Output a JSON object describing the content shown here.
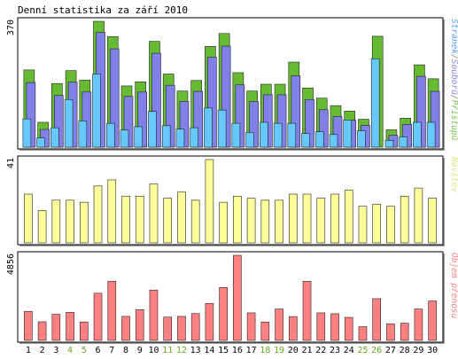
{
  "chart_data": {
    "type": "bar",
    "title": "Denní statistika za září 2010",
    "categories": [
      "1",
      "2",
      "3",
      "4",
      "5",
      "6",
      "7",
      "8",
      "9",
      "10",
      "11",
      "12",
      "13",
      "14",
      "15",
      "16",
      "17",
      "18",
      "19",
      "20",
      "21",
      "22",
      "23",
      "24",
      "25",
      "26",
      "27",
      "28",
      "29",
      "30"
    ],
    "weekend_days": [
      "4",
      "5",
      "11",
      "12",
      "18",
      "19",
      "25",
      "26"
    ],
    "grid": false,
    "panels": [
      {
        "name": "access",
        "ymax_label": "370",
        "ylim": [
          0,
          370
        ],
        "legend": [
          {
            "text": "Stránek",
            "color": "#4fa0f0"
          },
          {
            "text": "/",
            "color": "#888888"
          },
          {
            "text": "Souborů",
            "color": "#8585e0"
          },
          {
            "text": "/",
            "color": "#888888"
          },
          {
            "text": "Přístupů",
            "color": "#7ac04a"
          }
        ],
        "series": [
          {
            "name": "Přístupů",
            "color": "#66bb33",
            "values": [
              227,
              73,
              187,
              225,
              197,
              370,
              325,
              180,
              192,
              311,
              215,
              165,
              196,
              296,
              334,
              219,
              165,
              185,
              185,
              250,
              174,
              144,
              122,
              106,
              82,
              326,
              51,
              85,
              242,
              201
            ]
          },
          {
            "name": "Souborů",
            "color": "#8080e8",
            "values": [
              190,
              52,
              152,
              191,
              162,
              337,
              289,
              149,
              162,
              276,
              182,
              134,
              164,
              264,
              297,
              183,
              134,
              154,
              154,
              210,
              140,
              110,
              90,
              79,
              64,
              0,
              35,
              67,
              208,
              164
            ]
          },
          {
            "name": "Stránek",
            "color": "#66c8ff",
            "values": [
              83,
              27,
              57,
              140,
              77,
              215,
              70,
              50,
              60,
              105,
              63,
              53,
              57,
              115,
              109,
              70,
              43,
              73,
              70,
              70,
              40,
              45,
              37,
              80,
              48,
              260,
              20,
              30,
              73,
              73
            ]
          }
        ]
      },
      {
        "name": "visits",
        "ymax_label": "41",
        "ylim": [
          0,
          41
        ],
        "legend": [
          {
            "text": "Návštěv",
            "color": "#e0e080"
          }
        ],
        "series": [
          {
            "name": "Návštěv",
            "color": "#ffff99",
            "values": [
              24,
              16,
              21,
              21,
              20,
              28,
              31,
              23,
              23,
              29,
              22,
              25,
              21,
              41,
              20,
              23,
              22,
              21,
              21,
              24,
              24,
              22,
              24,
              26,
              18,
              19,
              18,
              23,
              27,
              22
            ]
          }
        ]
      },
      {
        "name": "traffic",
        "ymax_label": "4856",
        "ylim": [
          0,
          4856
        ],
        "legend": [
          {
            "text": "Objem přenosu",
            "color": "#f08080"
          }
        ],
        "series": [
          {
            "name": "Objem přenosu",
            "color": "#ff8080",
            "values": [
              1650,
              1060,
              1490,
              1600,
              1050,
              2690,
              3370,
              1370,
              1750,
              2870,
              1330,
              1370,
              1530,
              2110,
              3020,
              4856,
              1570,
              1050,
              1790,
              1360,
              3370,
              1570,
              1520,
              1310,
              780,
              2380,
              940,
              980,
              1790,
              2250
            ]
          }
        ]
      }
    ],
    "colors": {
      "plot_bg": "#ffffff",
      "frame": "#000000",
      "weekday_tick": "#000000",
      "weekend_tick": "#66aa22"
    }
  }
}
